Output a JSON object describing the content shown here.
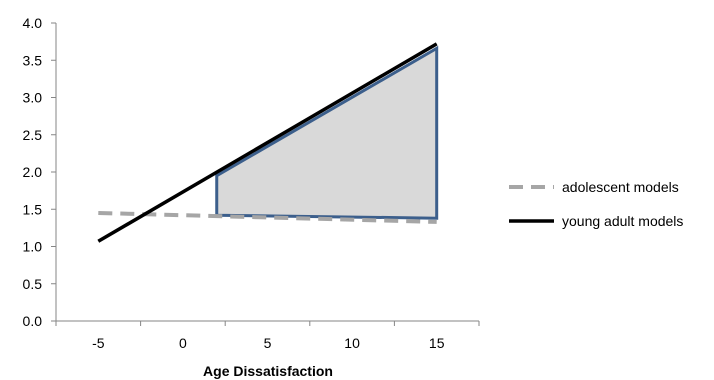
{
  "chart_data": {
    "type": "line",
    "title": "",
    "xlabel": "Age Dissatisfaction",
    "ylabel": "",
    "xlim": [
      -7.5,
      17.5
    ],
    "ylim": [
      0,
      4
    ],
    "x_ticks": [
      -5,
      0,
      5,
      10,
      15
    ],
    "x_tick_labels": [
      "-5",
      "0",
      "5",
      "10",
      "15"
    ],
    "y_ticks": [
      0,
      0.5,
      1,
      1.5,
      2,
      2.5,
      3,
      3.5,
      4
    ],
    "y_tick_labels": [
      "0.0",
      "0.5",
      "1.0",
      "1.5",
      "2.0",
      "2.5",
      "3.0",
      "3.5",
      "4.0"
    ],
    "grid": false,
    "legend_position": "right",
    "series": [
      {
        "name": "adolescent models",
        "style": "dashed",
        "color": "#a6a6a6",
        "x": [
          -5,
          15
        ],
        "y": [
          1.45,
          1.33
        ]
      },
      {
        "name": "young adult models",
        "style": "solid",
        "color": "#000000",
        "x": [
          -5,
          15
        ],
        "y": [
          1.07,
          3.72
        ]
      }
    ],
    "shaded_region": {
      "fill": "#d9d9d9",
      "stroke": "#3c5f8c",
      "x": [
        2,
        2,
        15,
        15
      ],
      "y": [
        1.42,
        1.95,
        3.66,
        1.38
      ]
    }
  }
}
